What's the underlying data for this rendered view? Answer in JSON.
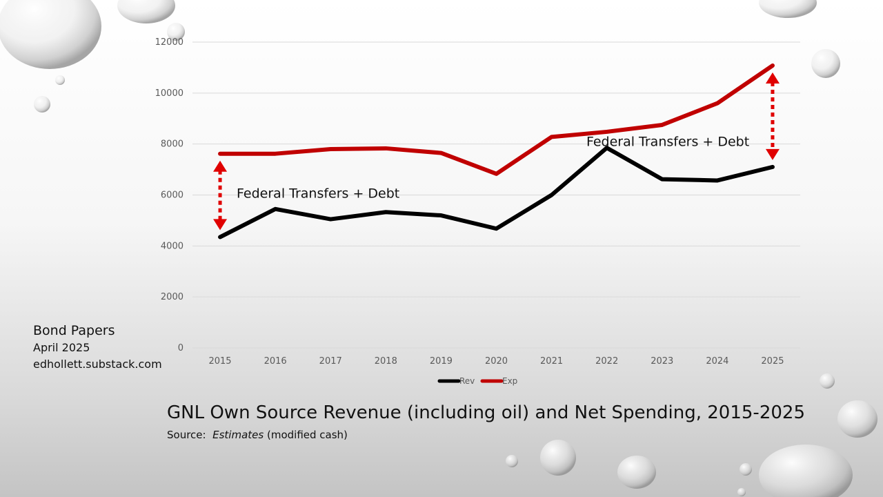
{
  "byline": {
    "name": "Bond Papers",
    "date": "April 2025",
    "url": "edhollett.substack.com"
  },
  "caption": {
    "title": "GNL Own Source Revenue (including oil) and Net Spending, 2015-2025",
    "source_label": "Source:",
    "source_italic": "Estimates",
    "source_rest": "(modified cash)"
  },
  "colors": {
    "rev": "#000000",
    "exp": "#C00000",
    "arrow": "#E00000",
    "grid": "#D9D9D9"
  },
  "chart_data": {
    "type": "line",
    "x": [
      "2015",
      "2016",
      "2017",
      "2018",
      "2019",
      "2020",
      "2021",
      "2022",
      "2023",
      "2024",
      "2025"
    ],
    "series": [
      {
        "name": "Rev",
        "values": [
          4350,
          5450,
          5050,
          5330,
          5200,
          4680,
          6000,
          7850,
          6620,
          6570,
          7100
        ]
      },
      {
        "name": "Exp",
        "values": [
          7620,
          7620,
          7800,
          7830,
          7650,
          6830,
          8280,
          8480,
          8750,
          9600,
          11080
        ]
      }
    ],
    "ylim": [
      0,
      12000
    ],
    "yticks": [
      "0",
      "2000",
      "4000",
      "6000",
      "8000",
      "10000",
      "12000"
    ],
    "grid": true,
    "legend": "bottom",
    "annotations": [
      {
        "text": "Federal Transfers + Debt",
        "year": "2015"
      },
      {
        "text": "Federal Transfers + Debt",
        "year": "2025"
      }
    ]
  }
}
